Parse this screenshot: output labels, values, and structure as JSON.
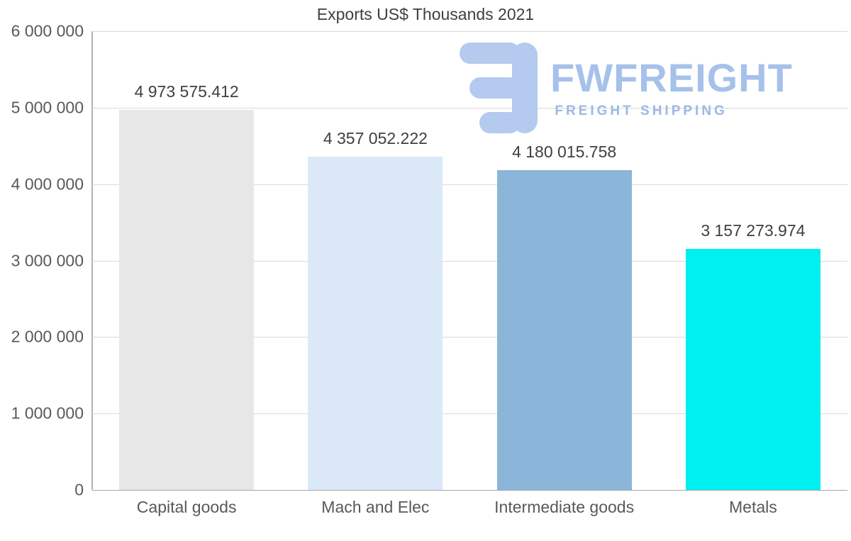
{
  "title": "Exports US$ Thousands 2021",
  "watermark": {
    "brand": "FWFREIGHT",
    "tagline": "FREIGHT SHIPPING",
    "color": "#a6c1ea"
  },
  "chart_data": {
    "type": "bar",
    "title": "Exports US$ Thousands 2021",
    "categories": [
      "Capital goods",
      "Mach and Elec",
      "Intermediate goods",
      "Metals"
    ],
    "values": [
      4973575.412,
      4357052.222,
      4180015.758,
      3157273.974
    ],
    "value_labels": [
      "4 973 575.412",
      "4 357 052.222",
      "4 180 015.758",
      "3 157 273.974"
    ],
    "bar_colors": [
      "#e7e7e7",
      "#dbe8f8",
      "#8bb5d9",
      "#00efef"
    ],
    "xlabel": "",
    "ylabel": "",
    "ylim": [
      0,
      6000000
    ],
    "ytick_interval": 1000000,
    "ytick_labels": [
      "0",
      "1 000 000",
      "2 000 000",
      "3 000 000",
      "4 000 000",
      "5 000 000",
      "6 000 000"
    ],
    "grid": true,
    "legend": "none"
  }
}
